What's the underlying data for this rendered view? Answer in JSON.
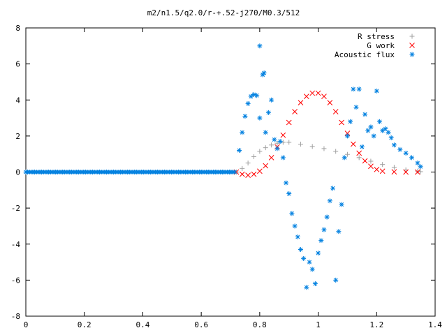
{
  "chart_data": {
    "type": "scatter",
    "title": "m2/n1.5/q2.0/r-+.52-j270/M0.3/512",
    "xlabel": "",
    "ylabel": "",
    "xlim": [
      0,
      1.4
    ],
    "ylim": [
      -8,
      8
    ],
    "x_ticks": [
      "0",
      "0.2",
      "0.4",
      "0.6",
      "0.8",
      "1",
      "1.2",
      "1.4"
    ],
    "y_ticks": [
      "8",
      "6",
      "4",
      "2",
      "0",
      "-2",
      "-4",
      "-6",
      "-8"
    ],
    "legend_position": "top-right",
    "grid": false,
    "series": [
      {
        "name": "R stress",
        "marker": "+",
        "color": "#a0a0a0",
        "points": [
          [
            0.72,
            0.0
          ],
          [
            0.74,
            0.2
          ],
          [
            0.76,
            0.5
          ],
          [
            0.78,
            0.85
          ],
          [
            0.8,
            1.15
          ],
          [
            0.82,
            1.35
          ],
          [
            0.84,
            1.5
          ],
          [
            0.86,
            1.6
          ],
          [
            0.88,
            1.65
          ],
          [
            0.9,
            1.65
          ],
          [
            0.94,
            1.55
          ],
          [
            0.98,
            1.42
          ],
          [
            1.02,
            1.3
          ],
          [
            1.06,
            1.15
          ],
          [
            1.1,
            0.98
          ],
          [
            1.14,
            0.8
          ],
          [
            1.18,
            0.6
          ],
          [
            1.22,
            0.42
          ],
          [
            1.26,
            0.26
          ],
          [
            1.3,
            0.12
          ],
          [
            1.34,
            0.05
          ],
          [
            1.35,
            0.02
          ]
        ]
      },
      {
        "name": "G work",
        "marker": "x",
        "color": "#ff0000",
        "points": [
          [
            0.72,
            0.0
          ],
          [
            0.74,
            -0.12
          ],
          [
            0.76,
            -0.18
          ],
          [
            0.78,
            -0.12
          ],
          [
            0.8,
            0.05
          ],
          [
            0.82,
            0.35
          ],
          [
            0.84,
            0.8
          ],
          [
            0.86,
            1.4
          ],
          [
            0.88,
            2.05
          ],
          [
            0.9,
            2.75
          ],
          [
            0.92,
            3.35
          ],
          [
            0.94,
            3.85
          ],
          [
            0.96,
            4.2
          ],
          [
            0.98,
            4.38
          ],
          [
            1.0,
            4.38
          ],
          [
            1.02,
            4.2
          ],
          [
            1.04,
            3.85
          ],
          [
            1.06,
            3.35
          ],
          [
            1.08,
            2.75
          ],
          [
            1.1,
            2.15
          ],
          [
            1.12,
            1.55
          ],
          [
            1.14,
            1.05
          ],
          [
            1.16,
            0.62
          ],
          [
            1.18,
            0.32
          ],
          [
            1.2,
            0.14
          ],
          [
            1.22,
            0.05
          ],
          [
            1.26,
            0.01
          ],
          [
            1.3,
            0.0
          ],
          [
            1.34,
            0.0
          ]
        ]
      },
      {
        "name": "Acoustic flux",
        "marker": "*",
        "color": "#0080e0",
        "points": [
          [
            0.73,
            1.2
          ],
          [
            0.74,
            2.2
          ],
          [
            0.75,
            3.1
          ],
          [
            0.76,
            3.8
          ],
          [
            0.77,
            4.2
          ],
          [
            0.78,
            4.3
          ],
          [
            0.79,
            4.25
          ],
          [
            0.8,
            7.0
          ],
          [
            0.81,
            5.4
          ],
          [
            0.815,
            5.5
          ],
          [
            0.8,
            3.0
          ],
          [
            0.82,
            2.2
          ],
          [
            0.83,
            3.3
          ],
          [
            0.84,
            4.0
          ],
          [
            0.85,
            1.8
          ],
          [
            0.86,
            1.3
          ],
          [
            0.87,
            1.7
          ],
          [
            0.88,
            0.8
          ],
          [
            0.89,
            -0.6
          ],
          [
            0.9,
            -1.2
          ],
          [
            0.91,
            -2.3
          ],
          [
            0.92,
            -3.0
          ],
          [
            0.93,
            -3.6
          ],
          [
            0.94,
            -4.3
          ],
          [
            0.95,
            -4.8
          ],
          [
            0.96,
            -6.4
          ],
          [
            0.97,
            -5.0
          ],
          [
            0.98,
            -5.4
          ],
          [
            0.99,
            -6.2
          ],
          [
            1.0,
            -4.5
          ],
          [
            1.01,
            -3.8
          ],
          [
            1.02,
            -3.2
          ],
          [
            1.03,
            -2.5
          ],
          [
            1.04,
            -1.6
          ],
          [
            1.05,
            -0.9
          ],
          [
            1.06,
            -6.0
          ],
          [
            1.07,
            -3.3
          ],
          [
            1.08,
            -1.8
          ],
          [
            1.09,
            0.8
          ],
          [
            1.1,
            2.0
          ],
          [
            1.11,
            2.8
          ],
          [
            1.12,
            4.6
          ],
          [
            1.13,
            3.6
          ],
          [
            1.14,
            4.6
          ],
          [
            1.15,
            1.4
          ],
          [
            1.16,
            3.2
          ],
          [
            1.17,
            2.3
          ],
          [
            1.18,
            2.5
          ],
          [
            1.19,
            2.0
          ],
          [
            1.2,
            4.5
          ],
          [
            1.21,
            2.8
          ],
          [
            1.22,
            2.3
          ],
          [
            1.23,
            2.4
          ],
          [
            1.24,
            2.2
          ],
          [
            1.25,
            1.9
          ],
          [
            1.26,
            1.5
          ],
          [
            1.28,
            1.25
          ],
          [
            1.3,
            1.05
          ],
          [
            1.32,
            0.8
          ],
          [
            1.34,
            0.5
          ],
          [
            1.35,
            0.3
          ]
        ]
      }
    ]
  }
}
